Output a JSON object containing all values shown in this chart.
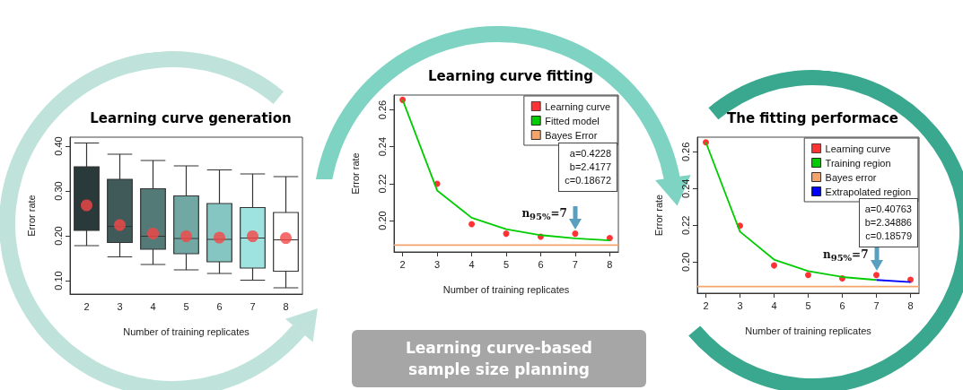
{
  "chart_data": [
    {
      "type": "box",
      "title": "Learning curve generation",
      "xlabel": "Number of training replicates",
      "ylabel": "Error rate",
      "categories": [
        "2",
        "3",
        "4",
        "5",
        "6",
        "7",
        "8"
      ],
      "ylim": [
        0.07,
        0.42
      ],
      "yticks": [
        {
          "value": 0.1,
          "label": "0.10"
        },
        {
          "value": 0.2,
          "label": "0.20"
        },
        {
          "value": 0.3,
          "label": "0.30"
        },
        {
          "value": 0.4,
          "label": "0.40"
        }
      ],
      "grid": false,
      "legend": false,
      "series": [
        {
          "type": "box",
          "colors": [
            "#2a3a3a",
            "#3f5a58",
            "#547a78",
            "#72a8a4",
            "#86c6c2",
            "#9ee3df",
            "#ffffff"
          ],
          "boxes": [
            {
              "low": 0.178,
              "q1": 0.212,
              "median": 0.267,
              "q3": 0.354,
              "high": 0.407
            },
            {
              "low": 0.153,
              "q1": 0.185,
              "median": 0.221,
              "q3": 0.326,
              "high": 0.382
            },
            {
              "low": 0.136,
              "q1": 0.17,
              "median": 0.199,
              "q3": 0.305,
              "high": 0.368
            },
            {
              "low": 0.124,
              "q1": 0.16,
              "median": 0.194,
              "q3": 0.289,
              "high": 0.356
            },
            {
              "low": 0.116,
              "q1": 0.142,
              "median": 0.192,
              "q3": 0.272,
              "high": 0.347
            },
            {
              "low": 0.101,
              "q1": 0.128,
              "median": 0.195,
              "q3": 0.263,
              "high": 0.338
            },
            {
              "low": 0.084,
              "q1": 0.121,
              "median": 0.191,
              "q3": 0.252,
              "high": 0.332
            }
          ]
        },
        {
          "type": "scatter",
          "marker": "circle",
          "color": "#f44646",
          "x": [
            "2",
            "3",
            "4",
            "5",
            "6",
            "7",
            "8"
          ],
          "values": [
            0.268,
            0.224,
            0.205,
            0.199,
            0.196,
            0.199,
            0.195
          ]
        }
      ]
    },
    {
      "type": "line",
      "title": "Learning curve fitting",
      "xlabel": "Number of training replicates",
      "ylabel": "Error rate",
      "xlim": [
        1.75,
        8.25
      ],
      "xticks": [
        2,
        3,
        4,
        5,
        6,
        7,
        8
      ],
      "ylim": [
        0.183,
        0.268
      ],
      "yticks": [
        {
          "value": 0.2,
          "label": "0.20"
        },
        0.22,
        0.24,
        0.26
      ],
      "grid": false,
      "legend": "top right",
      "marker": "none",
      "annotations": [
        "a=0.4228",
        "b=2.4177",
        "c=0.18672",
        {
          "text": "n$_{95%}$=7",
          "x": 7,
          "y": 0.1929
        }
      ],
      "series": [
        {
          "name": "Learning curve",
          "type": "scatter",
          "marker": "circle",
          "color": "#ff0000",
          "x": [
            2,
            3,
            4,
            5,
            6,
            7,
            8
          ],
          "values": [
            0.2654,
            0.2199,
            0.1981,
            0.1929,
            0.1913,
            0.1929,
            0.1905
          ]
        },
        {
          "name": "Fitted model",
          "type": "line",
          "color": "#00cc00",
          "x": [
            2,
            3,
            4,
            5,
            6,
            7,
            8
          ],
          "values": [
            0.2654,
            0.2163,
            0.2015,
            0.1953,
            0.1921,
            0.1903,
            0.1893
          ]
        },
        {
          "name": "Bayes Error",
          "type": "line",
          "color": "#f4a46a",
          "x": [
            1.75,
            8.25
          ],
          "values": [
            0.1867,
            0.1867
          ]
        }
      ]
    },
    {
      "type": "line",
      "title": "The fitting performace",
      "xlabel": "Number of training replicates",
      "ylabel": "Error rate",
      "xlim": [
        1.75,
        8.25
      ],
      "xticks": [
        2,
        3,
        4,
        5,
        6,
        7,
        8
      ],
      "ylim": [
        0.183,
        0.268
      ],
      "yticks": [
        {
          "value": 0.2,
          "label": "0.20"
        },
        0.22,
        0.24,
        0.26
      ],
      "grid": false,
      "legend": "top right",
      "marker": "none",
      "annotations": [
        "a=0.40763",
        "b=2.34886",
        "c=0.18579",
        {
          "text": "n$_{95%}$=7",
          "x": 7,
          "y": 0.1929
        }
      ],
      "series": [
        {
          "name": "Learning curve",
          "type": "scatter",
          "marker": "circle",
          "color": "#ff0000",
          "x": [
            2,
            3,
            4,
            5,
            6,
            7,
            8
          ],
          "values": [
            0.2652,
            0.2198,
            0.1981,
            0.1929,
            0.1911,
            0.1929,
            0.1903
          ]
        },
        {
          "name": "Training region",
          "type": "line",
          "color": "#00cc00",
          "x": [
            2,
            3,
            4,
            5,
            6,
            7
          ],
          "values": [
            0.2652,
            0.2165,
            0.2013,
            0.195,
            0.1918,
            0.1902
          ]
        },
        {
          "name": "Bayes error",
          "type": "line",
          "color": "#f4a46a",
          "x": [
            1.75,
            8.25
          ],
          "values": [
            0.1866,
            0.1866
          ]
        },
        {
          "name": "Extrapolated region",
          "type": "line",
          "color": "#0000ff",
          "x": [
            7,
            8
          ],
          "values": [
            0.1902,
            0.189
          ]
        }
      ]
    },
    {
      "type": "other",
      "title": "Learning curve-based sample size planning"
    }
  ]
}
